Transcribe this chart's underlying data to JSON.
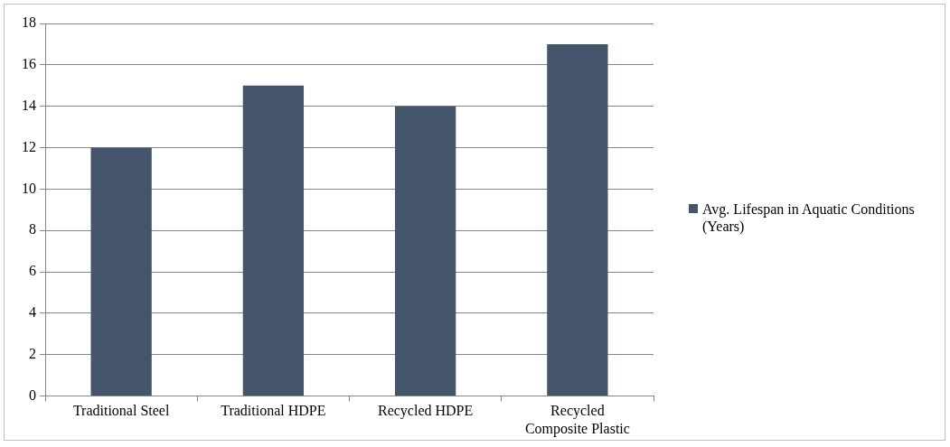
{
  "chart_data": {
    "type": "bar",
    "categories": [
      "Traditional Steel",
      "Traditional HDPE",
      "Recycled HDPE",
      "Recycled Composite Plastic"
    ],
    "series": [
      {
        "name": "Avg. Lifespan in Aquatic Conditions (Years)",
        "color": "#44546a",
        "values": [
          12,
          15,
          14,
          17
        ]
      }
    ],
    "ylim": [
      0,
      18
    ],
    "yticks": [
      0,
      2,
      4,
      6,
      8,
      10,
      12,
      14,
      16,
      18
    ],
    "grid": "y",
    "legend": "right"
  }
}
